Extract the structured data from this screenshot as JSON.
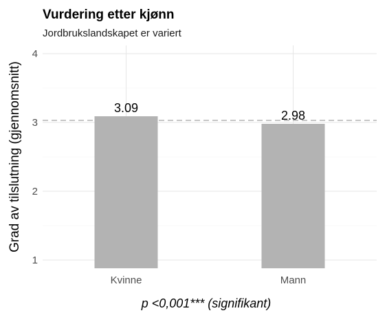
{
  "chart_data": {
    "type": "bar",
    "title": "Vurdering etter kjønn",
    "subtitle": "Jordbrukslandskapet er variert",
    "xlabel": "",
    "ylabel": "Grad av tilslutning (gjennomsnitt)",
    "categories": [
      "Kvinne",
      "Mann"
    ],
    "values": [
      3.09,
      2.98
    ],
    "value_labels": [
      "3.09",
      "2.98"
    ],
    "ylim": [
      0.88,
      4.12
    ],
    "yticks": [
      1,
      2,
      3,
      4
    ],
    "reference_line": 3.03,
    "reference_line_style": "dashed",
    "bar_color": "#b3b3b3",
    "reference_color": "#b3b3b3",
    "grid": true,
    "caption": "p <0,001*** (signifikant)"
  }
}
